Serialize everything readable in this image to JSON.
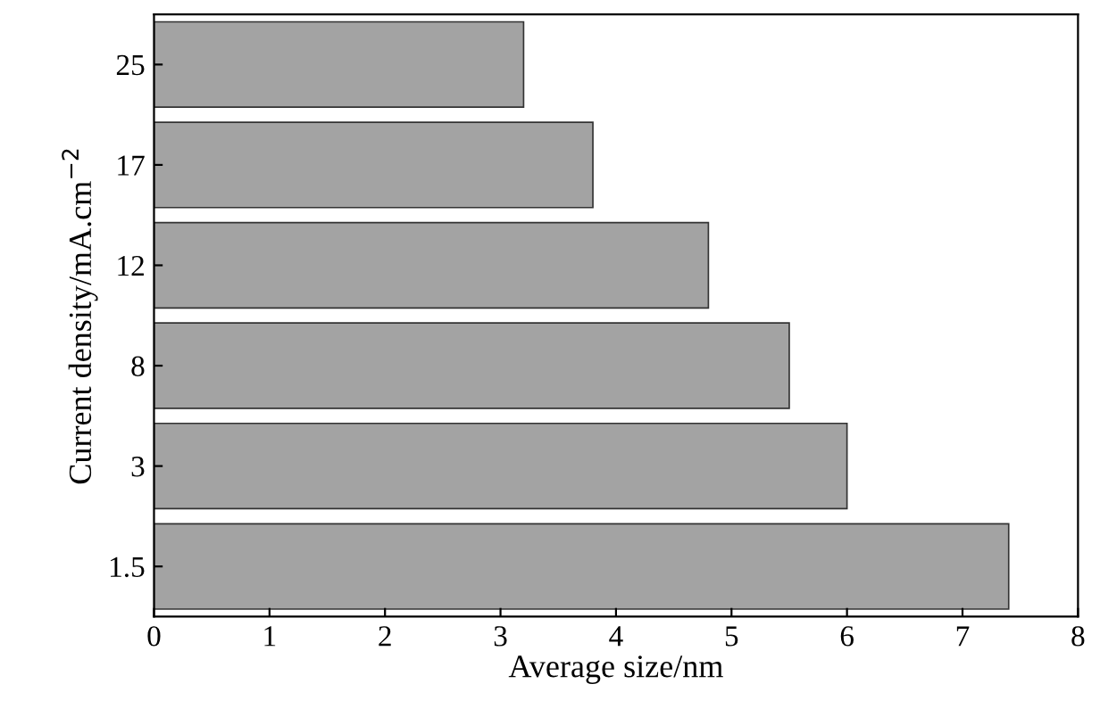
{
  "chart_data": {
    "type": "bar",
    "orientation": "horizontal",
    "xlabel": "Average size/nm",
    "ylabel": "Current density/mA.cm$^{−2}$",
    "categories": [
      "25",
      "17",
      "12",
      "8",
      "3",
      "1.5"
    ],
    "values": [
      3.2,
      3.8,
      4.8,
      5.5,
      6.0,
      7.4
    ],
    "color": "#a3a3a3",
    "xlim": [
      0,
      8
    ],
    "xticks": [
      0,
      1,
      2,
      3,
      4,
      5,
      6,
      7,
      8
    ],
    "grid": false
  }
}
